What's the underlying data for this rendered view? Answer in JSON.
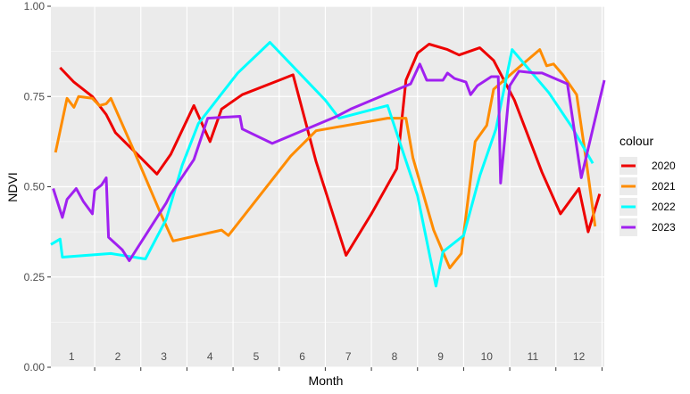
{
  "chart_data": {
    "type": "line",
    "xlabel": "Month",
    "ylabel": "NDVI",
    "ylim": [
      0,
      1
    ],
    "xlim": [
      0.55,
      12.55
    ],
    "y_ticks": [
      "0.00",
      "0.25",
      "0.50",
      "0.75",
      "1.00"
    ],
    "y_tick_values": [
      0,
      0.25,
      0.5,
      0.75,
      1.0
    ],
    "month_labels": [
      "1",
      "2",
      "3",
      "4",
      "5",
      "6",
      "7",
      "8",
      "9",
      "10",
      "11",
      "12"
    ],
    "grid": true,
    "legend": {
      "title": "colour",
      "placement": "right"
    },
    "series": [
      {
        "name": "2020",
        "color": "#ee0000",
        "points": [
          [
            0.75,
            0.83
          ],
          [
            1.05,
            0.79
          ],
          [
            1.45,
            0.75
          ],
          [
            1.75,
            0.7
          ],
          [
            1.95,
            0.65
          ],
          [
            2.5,
            0.58
          ],
          [
            2.85,
            0.535
          ],
          [
            3.15,
            0.59
          ],
          [
            3.65,
            0.725
          ],
          [
            4.0,
            0.625
          ],
          [
            4.25,
            0.715
          ],
          [
            4.7,
            0.755
          ],
          [
            5.5,
            0.795
          ],
          [
            5.8,
            0.81
          ],
          [
            6.3,
            0.57
          ],
          [
            6.95,
            0.31
          ],
          [
            7.5,
            0.425
          ],
          [
            8.05,
            0.55
          ],
          [
            8.25,
            0.795
          ],
          [
            8.5,
            0.87
          ],
          [
            8.75,
            0.895
          ],
          [
            9.15,
            0.88
          ],
          [
            9.4,
            0.865
          ],
          [
            9.85,
            0.885
          ],
          [
            10.15,
            0.85
          ],
          [
            10.6,
            0.74
          ],
          [
            11.2,
            0.54
          ],
          [
            11.6,
            0.425
          ],
          [
            12.0,
            0.495
          ],
          [
            12.2,
            0.375
          ],
          [
            12.45,
            0.48
          ]
        ]
      },
      {
        "name": "2021",
        "color": "#ff8c00",
        "points": [
          [
            0.65,
            0.595
          ],
          [
            0.9,
            0.745
          ],
          [
            1.05,
            0.72
          ],
          [
            1.15,
            0.75
          ],
          [
            1.45,
            0.745
          ],
          [
            1.6,
            0.725
          ],
          [
            1.75,
            0.73
          ],
          [
            1.85,
            0.745
          ],
          [
            2.35,
            0.6
          ],
          [
            2.95,
            0.42
          ],
          [
            3.2,
            0.35
          ],
          [
            4.25,
            0.38
          ],
          [
            4.4,
            0.365
          ],
          [
            5.75,
            0.585
          ],
          [
            6.3,
            0.655
          ],
          [
            7.85,
            0.69
          ],
          [
            8.25,
            0.69
          ],
          [
            8.4,
            0.58
          ],
          [
            8.85,
            0.38
          ],
          [
            9.1,
            0.305
          ],
          [
            9.2,
            0.275
          ],
          [
            9.45,
            0.315
          ],
          [
            9.75,
            0.625
          ],
          [
            10.0,
            0.67
          ],
          [
            10.15,
            0.77
          ],
          [
            10.6,
            0.82
          ],
          [
            11.15,
            0.88
          ],
          [
            11.3,
            0.835
          ],
          [
            11.45,
            0.84
          ],
          [
            11.65,
            0.81
          ],
          [
            11.95,
            0.755
          ],
          [
            12.15,
            0.58
          ],
          [
            12.35,
            0.39
          ]
        ]
      },
      {
        "name": "2022",
        "color": "#00ffff",
        "points": [
          [
            0.55,
            0.34
          ],
          [
            0.75,
            0.355
          ],
          [
            0.8,
            0.305
          ],
          [
            1.85,
            0.315
          ],
          [
            2.6,
            0.3
          ],
          [
            3.05,
            0.41
          ],
          [
            3.4,
            0.56
          ],
          [
            3.75,
            0.675
          ],
          [
            4.6,
            0.815
          ],
          [
            5.3,
            0.9
          ],
          [
            6.5,
            0.74
          ],
          [
            6.8,
            0.69
          ],
          [
            7.85,
            0.725
          ],
          [
            8.5,
            0.475
          ],
          [
            8.9,
            0.225
          ],
          [
            9.05,
            0.32
          ],
          [
            9.5,
            0.365
          ],
          [
            9.85,
            0.53
          ],
          [
            10.2,
            0.66
          ],
          [
            10.55,
            0.88
          ],
          [
            11.35,
            0.76
          ],
          [
            11.85,
            0.665
          ],
          [
            12.3,
            0.565
          ]
        ]
      },
      {
        "name": "2023",
        "color": "#a020f0",
        "points": [
          [
            0.6,
            0.495
          ],
          [
            0.8,
            0.415
          ],
          [
            0.9,
            0.465
          ],
          [
            1.1,
            0.495
          ],
          [
            1.25,
            0.46
          ],
          [
            1.45,
            0.425
          ],
          [
            1.5,
            0.49
          ],
          [
            1.6,
            0.5
          ],
          [
            1.65,
            0.505
          ],
          [
            1.75,
            0.525
          ],
          [
            1.8,
            0.36
          ],
          [
            2.1,
            0.325
          ],
          [
            2.25,
            0.295
          ],
          [
            3.05,
            0.455
          ],
          [
            3.15,
            0.48
          ],
          [
            3.65,
            0.575
          ],
          [
            3.95,
            0.69
          ],
          [
            4.65,
            0.695
          ],
          [
            4.7,
            0.66
          ],
          [
            5.35,
            0.62
          ],
          [
            6.75,
            0.695
          ],
          [
            7.05,
            0.715
          ],
          [
            8.35,
            0.785
          ],
          [
            8.55,
            0.84
          ],
          [
            8.7,
            0.795
          ],
          [
            9.05,
            0.795
          ],
          [
            9.15,
            0.815
          ],
          [
            9.3,
            0.8
          ],
          [
            9.55,
            0.79
          ],
          [
            9.65,
            0.755
          ],
          [
            9.8,
            0.78
          ],
          [
            10.1,
            0.805
          ],
          [
            10.25,
            0.805
          ],
          [
            10.3,
            0.51
          ],
          [
            10.5,
            0.78
          ],
          [
            10.7,
            0.82
          ],
          [
            11.05,
            0.815
          ],
          [
            11.2,
            0.815
          ],
          [
            11.75,
            0.785
          ],
          [
            12.05,
            0.525
          ],
          [
            12.55,
            0.795
          ]
        ]
      }
    ]
  }
}
